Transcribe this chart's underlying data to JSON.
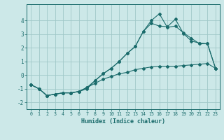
{
  "xlabel": "Humidex (Indice chaleur)",
  "background_color": "#cce8e8",
  "grid_color": "#a0c8c8",
  "line_color": "#1a6b6b",
  "xlim": [
    -0.5,
    23.5
  ],
  "ylim": [
    -2.5,
    5.2
  ],
  "x_ticks": [
    0,
    1,
    2,
    3,
    4,
    5,
    6,
    7,
    8,
    9,
    10,
    11,
    12,
    13,
    14,
    15,
    16,
    17,
    18,
    19,
    20,
    21,
    22,
    23
  ],
  "yticks": [
    -2,
    -1,
    0,
    1,
    2,
    3,
    4
  ],
  "line1_y": [
    -0.7,
    -1.0,
    -1.5,
    -1.4,
    -1.3,
    -1.3,
    -1.2,
    -0.9,
    -0.6,
    -0.3,
    -0.1,
    0.1,
    0.2,
    0.4,
    0.5,
    0.6,
    0.65,
    0.65,
    0.65,
    0.7,
    0.75,
    0.8,
    0.85,
    0.5
  ],
  "line2_y": [
    -0.7,
    -1.0,
    -1.5,
    -1.4,
    -1.3,
    -1.3,
    -1.2,
    -1.0,
    -0.4,
    0.1,
    0.5,
    1.0,
    1.6,
    2.1,
    3.2,
    3.8,
    3.6,
    3.55,
    4.1,
    3.05,
    2.5,
    2.35,
    2.3,
    0.5
  ],
  "line3_y": [
    -0.7,
    -1.0,
    -1.5,
    -1.4,
    -1.3,
    -1.3,
    -1.2,
    -0.9,
    -0.4,
    0.1,
    0.5,
    1.0,
    1.6,
    2.1,
    3.2,
    4.0,
    4.5,
    3.5,
    3.6,
    3.1,
    2.7,
    2.3,
    2.3,
    0.5
  ]
}
